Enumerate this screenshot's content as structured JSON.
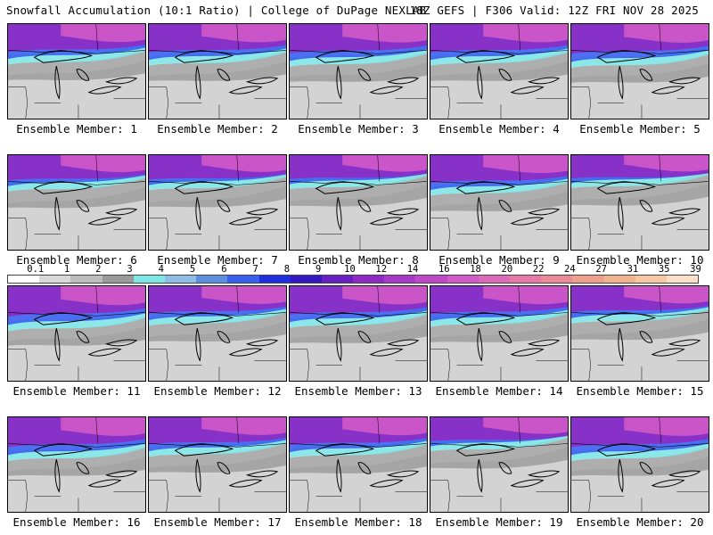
{
  "header": {
    "left_title": "Snowfall Accumulation (10:1 Ratio) | College of DuPage NEXLAB",
    "right_title": "18Z GEFS | F306 Valid: 12Z FRI NOV 28 2025"
  },
  "colorbar": {
    "labels": [
      "0.1",
      "1",
      "2",
      "3",
      "4",
      "5",
      "6",
      "7",
      "8",
      "9",
      "10",
      "12",
      "14",
      "16",
      "18",
      "20",
      "22",
      "24",
      "27",
      "31",
      "35",
      "39"
    ],
    "colors": [
      "#ffffff",
      "#d9d9d9",
      "#bdbdbd",
      "#9a9a9a",
      "#7fe6e6",
      "#8fbde8",
      "#5e8ee0",
      "#3a5ff0",
      "#1f2ee0",
      "#3318c4",
      "#6a1fc4",
      "#8e2ac4",
      "#a838c8",
      "#bf48c8",
      "#d25ac8",
      "#dd6ab8",
      "#e57aa8",
      "#ea8a98",
      "#eea08c",
      "#f2b490",
      "#f6c8a4",
      "#fae0c8"
    ]
  },
  "members": [
    {
      "label": "Ensemble Member: 1",
      "intensity": 0.55
    },
    {
      "label": "Ensemble Member: 2",
      "intensity": 0.5
    },
    {
      "label": "Ensemble Member: 3",
      "intensity": 0.45
    },
    {
      "label": "Ensemble Member: 4",
      "intensity": 0.5
    },
    {
      "label": "Ensemble Member: 5",
      "intensity": 0.4
    },
    {
      "label": "Ensemble Member: 6",
      "intensity": 0.75
    },
    {
      "label": "Ensemble Member: 7",
      "intensity": 0.8
    },
    {
      "label": "Ensemble Member: 8",
      "intensity": 0.85
    },
    {
      "label": "Ensemble Member: 9",
      "intensity": 0.55
    },
    {
      "label": "Ensemble Member: 10",
      "intensity": 0.9
    },
    {
      "label": "Ensemble Member: 11",
      "intensity": 0.35
    },
    {
      "label": "Ensemble Member: 12",
      "intensity": 0.6
    },
    {
      "label": "Ensemble Member: 13",
      "intensity": 0.5
    },
    {
      "label": "Ensemble Member: 14",
      "intensity": 0.55
    },
    {
      "label": "Ensemble Member: 15",
      "intensity": 0.7
    },
    {
      "label": "Ensemble Member: 16",
      "intensity": 0.4
    },
    {
      "label": "Ensemble Member: 17",
      "intensity": 0.6
    },
    {
      "label": "Ensemble Member: 18",
      "intensity": 0.55
    },
    {
      "label": "Ensemble Member: 19",
      "intensity": 0.85
    },
    {
      "label": "Ensemble Member: 20",
      "intensity": 0.4
    }
  ]
}
